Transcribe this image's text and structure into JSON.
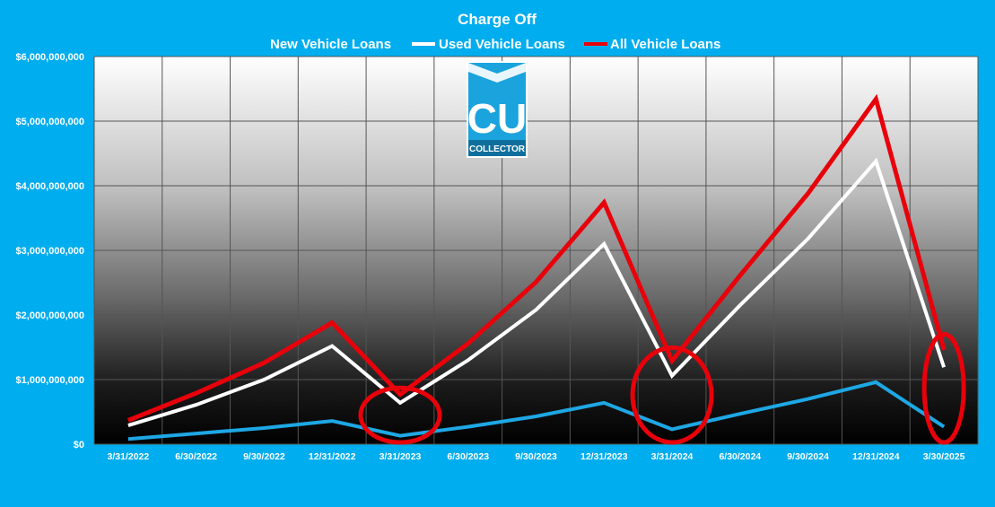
{
  "chart_data": {
    "type": "line",
    "title": "Charge Off",
    "categories": [
      "3/31/2022",
      "6/30/2022",
      "9/30/2022",
      "12/31/2022",
      "3/31/2023",
      "6/30/2023",
      "9/30/2023",
      "12/31/2023",
      "3/31/2024",
      "6/30/2024",
      "9/30/2024",
      "12/31/2024",
      "3/30/2025"
    ],
    "series": [
      {
        "name": "New Vehicle Loans",
        "color": "#1ea7e4",
        "values": [
          80000000,
          165000000,
          250000000,
          360000000,
          130000000,
          270000000,
          430000000,
          640000000,
          230000000,
          470000000,
          700000000,
          960000000,
          270000000
        ]
      },
      {
        "name": "Used Vehicle Loans",
        "color": "#ffffff",
        "values": [
          290000000,
          610000000,
          1000000000,
          1520000000,
          640000000,
          1300000000,
          2080000000,
          3100000000,
          1060000000,
          2150000000,
          3180000000,
          4380000000,
          1190000000
        ]
      },
      {
        "name": "All Vehicle Loans",
        "color": "#e8000a",
        "values": [
          370000000,
          790000000,
          1260000000,
          1880000000,
          770000000,
          1560000000,
          2510000000,
          3740000000,
          1290000000,
          2610000000,
          3880000000,
          5340000000,
          1460000000
        ]
      }
    ],
    "ylim": [
      0,
      6000000000
    ],
    "yticks": [
      {
        "value": 0,
        "label": "$0"
      },
      {
        "value": 1000000000,
        "label": "$1,000,000,000"
      },
      {
        "value": 2000000000,
        "label": "$2,000,000,000"
      },
      {
        "value": 3000000000,
        "label": "$3,000,000,000"
      },
      {
        "value": 4000000000,
        "label": "$4,000,000,000"
      },
      {
        "value": 5000000000,
        "label": "$5,000,000,000"
      },
      {
        "value": 6000000000,
        "label": "$6,000,000,000"
      }
    ],
    "grid": true,
    "legend": "top-center",
    "annotations": [
      {
        "type": "ellipse-highlight",
        "category": "3/31/2023",
        "color": "#e8000a"
      },
      {
        "type": "ellipse-highlight",
        "category": "3/31/2024",
        "color": "#e8000a"
      },
      {
        "type": "ellipse-highlight",
        "category": "3/30/2025",
        "color": "#e8000a"
      }
    ]
  },
  "logo": {
    "letters": "CU",
    "caption": "COLLECTOR",
    "color": "#1aa3dd"
  },
  "colors": {
    "background": "#00adef",
    "gridline": "#555555"
  }
}
